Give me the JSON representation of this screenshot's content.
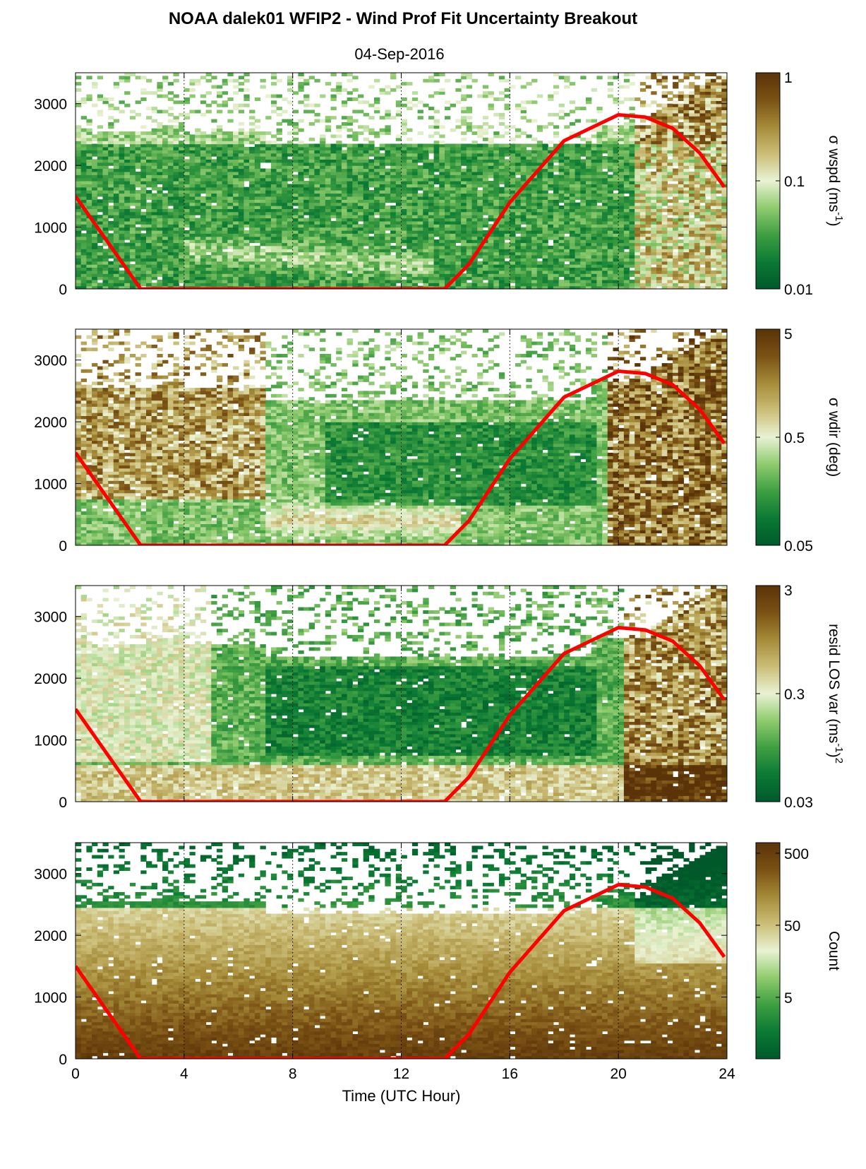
{
  "figure": {
    "title": "NOAA dalek01 WFIP2 - Wind Prof Fit Uncertainty Breakout",
    "subtitle": "04-Sep-2016"
  },
  "colors": {
    "overlay_line": "#ff0000",
    "colormap": [
      "#00592a",
      "#0b7a34",
      "#3f9e42",
      "#8fcb6e",
      "#e9f2d3",
      "#cbbd77",
      "#a58b39",
      "#7a5114",
      "#5a3309"
    ]
  },
  "chart_data": [
    {
      "type": "heatmap",
      "panel": "wspd",
      "xlabel": "",
      "ylabel": "",
      "xlim": [
        0,
        24
      ],
      "ylim": [
        0,
        3500
      ],
      "x_ticks": [
        0,
        4,
        8,
        12,
        16,
        20,
        24
      ],
      "y_ticks": [
        0,
        1000,
        2000,
        3000
      ],
      "x_tick_labels": [
        "",
        "",
        "",
        "",
        "",
        "",
        ""
      ],
      "y_tick_labels": [
        "0",
        "1000",
        "2000",
        "3000"
      ],
      "grid": "vertical dotted lines at x ticks",
      "colorbar": {
        "label": "σ wspd (ms",
        "label_sup": "-1",
        "label_end": ")",
        "scale": "log",
        "range": [
          0.01,
          1
        ],
        "ticks": [
          0.01,
          0.1,
          1
        ],
        "tick_labels": [
          "0.01",
          "0.1",
          "1"
        ]
      },
      "overlay_line": {
        "color": "#ff0000",
        "x": [
          0,
          2.4,
          13.6,
          14.5,
          16,
          18,
          20,
          21,
          22,
          23,
          23.9
        ],
        "y": [
          1500,
          0,
          0,
          400,
          1400,
          2400,
          2820,
          2780,
          2600,
          2200,
          1650
        ]
      }
    },
    {
      "type": "heatmap",
      "panel": "wdir",
      "xlabel": "",
      "ylabel": "",
      "xlim": [
        0,
        24
      ],
      "ylim": [
        0,
        3500
      ],
      "x_ticks": [
        0,
        4,
        8,
        12,
        16,
        20,
        24
      ],
      "y_ticks": [
        0,
        1000,
        2000,
        3000
      ],
      "x_tick_labels": [
        "",
        "",
        "",
        "",
        "",
        "",
        ""
      ],
      "y_tick_labels": [
        "0",
        "1000",
        "2000",
        "3000"
      ],
      "grid": "vertical dotted lines at x ticks",
      "colorbar": {
        "label": "σ wdir (deg)",
        "label_sup": "",
        "label_end": "",
        "scale": "log",
        "range": [
          0.05,
          5
        ],
        "ticks": [
          0.05,
          0.5,
          5
        ],
        "tick_labels": [
          "0.05",
          "0.5",
          "5"
        ]
      },
      "overlay_line": {
        "color": "#ff0000",
        "x": [
          0,
          2.4,
          13.6,
          14.5,
          16,
          18,
          20,
          21,
          22,
          23,
          23.9
        ],
        "y": [
          1500,
          0,
          0,
          400,
          1400,
          2400,
          2820,
          2780,
          2600,
          2200,
          1650
        ]
      }
    },
    {
      "type": "heatmap",
      "panel": "resid",
      "xlabel": "",
      "ylabel": "",
      "xlim": [
        0,
        24
      ],
      "ylim": [
        0,
        3500
      ],
      "x_ticks": [
        0,
        4,
        8,
        12,
        16,
        20,
        24
      ],
      "y_ticks": [
        0,
        1000,
        2000,
        3000
      ],
      "x_tick_labels": [
        "",
        "",
        "",
        "",
        "",
        "",
        ""
      ],
      "y_tick_labels": [
        "0",
        "1000",
        "2000",
        "3000"
      ],
      "grid": "vertical dotted lines at x ticks",
      "colorbar": {
        "label": "resid LOS var (ms",
        "label_sup": "-1",
        "label_end": ")",
        "label_sup2": "2",
        "scale": "log",
        "range": [
          0.03,
          3
        ],
        "ticks": [
          0.03,
          0.3,
          3
        ],
        "tick_labels": [
          "0.03",
          "0.3",
          "3"
        ]
      },
      "overlay_line": {
        "color": "#ff0000",
        "x": [
          0,
          2.4,
          13.6,
          14.5,
          16,
          18,
          20,
          21,
          22,
          23,
          23.9
        ],
        "y": [
          1500,
          0,
          0,
          400,
          1400,
          2400,
          2820,
          2780,
          2600,
          2200,
          1650
        ]
      }
    },
    {
      "type": "heatmap",
      "panel": "count",
      "xlabel": "Time (UTC Hour)",
      "ylabel": "",
      "xlim": [
        0,
        24
      ],
      "ylim": [
        0,
        3500
      ],
      "x_ticks": [
        0,
        4,
        8,
        12,
        16,
        20,
        24
      ],
      "y_ticks": [
        0,
        1000,
        2000,
        3000
      ],
      "x_tick_labels": [
        "0",
        "4",
        "8",
        "12",
        "16",
        "20",
        "24"
      ],
      "y_tick_labels": [
        "0",
        "1000",
        "2000",
        "3000"
      ],
      "grid": "vertical dotted lines at x ticks",
      "colorbar": {
        "label": "Count",
        "label_sup": "",
        "label_end": "",
        "scale": "log",
        "range": [
          0.7,
          700
        ],
        "ticks": [
          5,
          50,
          500
        ],
        "tick_labels": [
          "5",
          "50",
          "500"
        ]
      },
      "overlay_line": {
        "color": "#ff0000",
        "x": [
          0,
          2.4,
          13.6,
          14.5,
          16,
          18,
          20,
          21,
          22,
          23,
          23.9
        ],
        "y": [
          1500,
          0,
          0,
          400,
          1400,
          2400,
          2820,
          2780,
          2600,
          2200,
          1650
        ]
      }
    }
  ]
}
